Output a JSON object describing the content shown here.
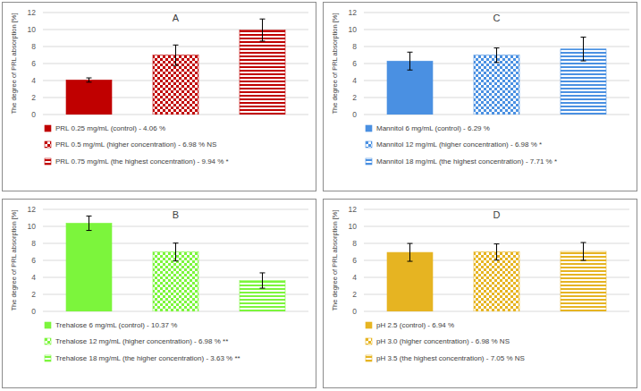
{
  "chart_data": [
    {
      "type": "bar",
      "title": "A",
      "y_label": "The degree of PRL absorption [%]",
      "categories": [
        null
      ],
      "series": [
        {
          "name": "PRL 0.25 mg/mL (control) - 4.06 %",
          "color": "#c00000",
          "values": [
            4.06
          ],
          "error": [
            0.25
          ]
        },
        {
          "name": "PRL 0.5 mg/mL (higher concentration) - 6.98 % NS",
          "color": "#c00000",
          "values": [
            6.98
          ],
          "error": [
            1.2
          ]
        },
        {
          "name": "PRL 0.75 mg/mL (the highest concentration) - 9.94 % *",
          "color": "#c00000",
          "values": [
            9.94
          ],
          "error": [
            1.3
          ]
        }
      ],
      "ylim": [
        0,
        12
      ],
      "yticks": [
        0,
        2,
        4,
        6,
        8,
        10,
        12
      ],
      "grid": true,
      "legend": "bottom"
    },
    {
      "type": "bar",
      "title": "B",
      "y_label": "The degree of PRL absorption [%]",
      "categories": [
        null
      ],
      "series": [
        {
          "name": "Trehalose 6 mg/mL (control) - 10.37 %",
          "color": "#7cf53c",
          "values": [
            10.37
          ],
          "error": [
            0.85
          ]
        },
        {
          "name": "Trehalose 12 mg/mL (higher concentration) - 6.98 % **",
          "color": "#7cf53c",
          "values": [
            6.98
          ],
          "error": [
            1.05
          ]
        },
        {
          "name": "Trehalose 18 mg/mL (the higher concentration) - 3.63 % **",
          "color": "#7cf53c",
          "values": [
            3.63
          ],
          "error": [
            0.9
          ]
        }
      ],
      "ylim": [
        0,
        12
      ],
      "yticks": [
        0,
        2,
        4,
        6,
        8,
        10,
        12
      ],
      "grid": true,
      "legend": "bottom"
    },
    {
      "type": "bar",
      "title": "C",
      "y_label": "The degree of PRL absorption [%]",
      "categories": [
        null
      ],
      "series": [
        {
          "name": "Mannitol 6 mg/mL (control) - 6.29 %",
          "color": "#4a90e2",
          "values": [
            6.29
          ],
          "error": [
            1.05
          ]
        },
        {
          "name": "Mannitol 12 mg/mL (higher concentration) - 6.98 % *",
          "color": "#4a90e2",
          "values": [
            6.98
          ],
          "error": [
            0.85
          ]
        },
        {
          "name": "Mannitol 18 mg/mL (the highest concentration) - 7.71 % *",
          "color": "#4a90e2",
          "values": [
            7.71
          ],
          "error": [
            1.4
          ]
        }
      ],
      "ylim": [
        0,
        12
      ],
      "yticks": [
        0,
        2,
        4,
        6,
        8,
        10,
        12
      ],
      "grid": true,
      "legend": "bottom"
    },
    {
      "type": "bar",
      "title": "D",
      "y_label": "The degree of PRL absorption [%]",
      "categories": [
        null
      ],
      "series": [
        {
          "name": "pH 2.5 (control) - 6.94 %",
          "color": "#e6b422",
          "values": [
            6.94
          ],
          "error": [
            1.05
          ]
        },
        {
          "name": "pH 3.0 (higher concentration) - 6.98 % NS",
          "color": "#e6b422",
          "values": [
            6.98
          ],
          "error": [
            0.95
          ]
        },
        {
          "name": "pH 3.5 (the highest concentration) - 7.05 % NS",
          "color": "#e6b422",
          "values": [
            7.05
          ],
          "error": [
            1.05
          ]
        }
      ],
      "ylim": [
        0,
        12
      ],
      "yticks": [
        0,
        2,
        4,
        6,
        8,
        10,
        12
      ],
      "grid": true,
      "legend": "bottom"
    }
  ]
}
